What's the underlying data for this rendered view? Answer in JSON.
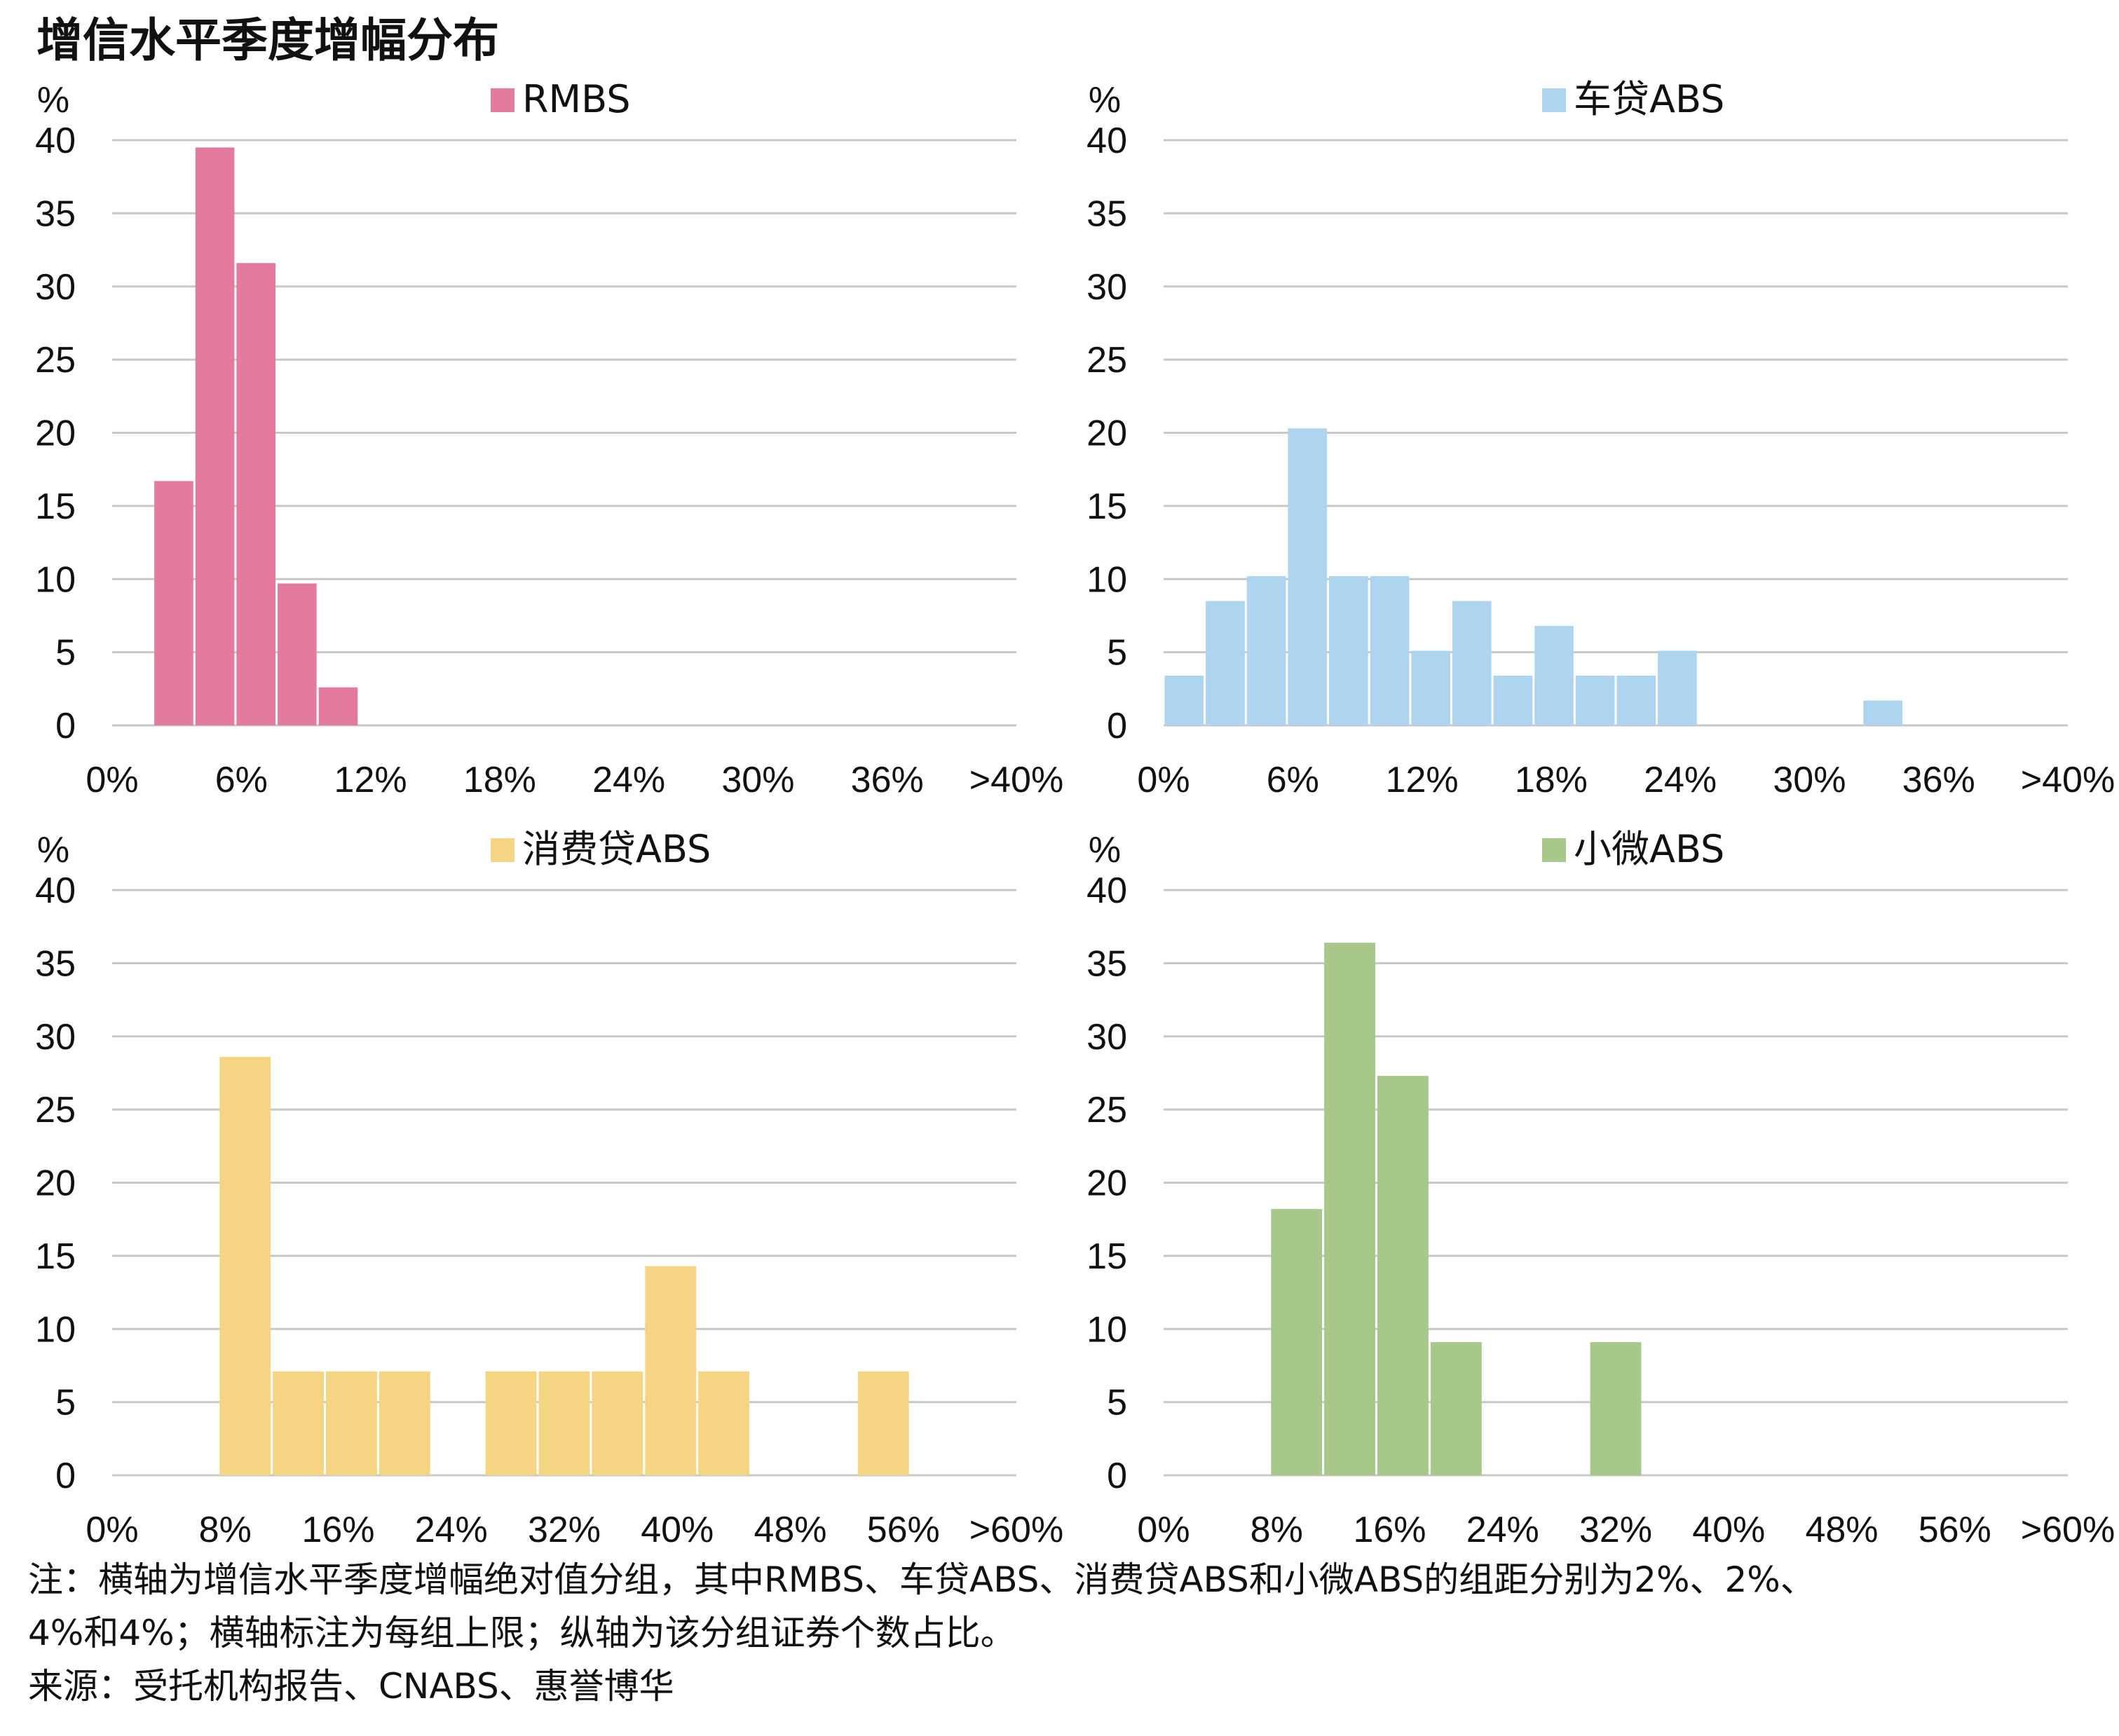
{
  "title": "增信水平季度增幅分布",
  "notes": {
    "line1": "注：横轴为增信水平季度增幅绝对值分组，其中RMBS、车贷ABS、消费贷ABS和小微ABS的组距分别为2%、2%、",
    "line2": "4%和4%；横轴标注为每组上限；纵轴为该分组证券个数占比。",
    "source": "来源：受托机构报告、CNABS、惠誉博华"
  },
  "chart_data": [
    {
      "type": "bar",
      "legend": "RMBS",
      "color": "#E37B9D",
      "unit": "%",
      "ylim": [
        0,
        40
      ],
      "yticks": [
        0,
        5,
        10,
        15,
        20,
        25,
        30,
        35,
        40
      ],
      "xtick_labels": [
        "0%",
        "6%",
        "12%",
        "18%",
        "24%",
        "30%",
        "36%",
        ">40%"
      ],
      "values": [
        0,
        16.7,
        39.5,
        31.6,
        9.7,
        2.6,
        0,
        0,
        0,
        0,
        0,
        0,
        0,
        0,
        0,
        0,
        0,
        0,
        0,
        0,
        0,
        0
      ],
      "grid": true,
      "legend_position": "top"
    },
    {
      "type": "bar",
      "legend": "车贷ABS",
      "color": "#AED4F0",
      "unit": "%",
      "ylim": [
        0,
        40
      ],
      "yticks": [
        0,
        5,
        10,
        15,
        20,
        25,
        30,
        35,
        40
      ],
      "xtick_labels": [
        "0%",
        "6%",
        "12%",
        "18%",
        "24%",
        "30%",
        "36%",
        ">40%"
      ],
      "values": [
        3.4,
        8.5,
        10.2,
        20.3,
        10.2,
        10.2,
        5.1,
        8.5,
        3.4,
        6.8,
        3.4,
        3.4,
        5.1,
        0,
        0,
        0,
        0,
        1.7,
        0,
        0,
        0,
        0
      ],
      "grid": true,
      "legend_position": "top"
    },
    {
      "type": "bar",
      "legend": "消费贷ABS",
      "color": "#F5D483",
      "unit": "%",
      "ylim": [
        0,
        40
      ],
      "yticks": [
        0,
        5,
        10,
        15,
        20,
        25,
        30,
        35,
        40
      ],
      "xtick_labels": [
        "0%",
        "8%",
        "16%",
        "24%",
        "32%",
        "40%",
        "48%",
        "56%",
        ">60%"
      ],
      "values": [
        0,
        0,
        28.6,
        7.1,
        7.1,
        7.1,
        0,
        7.1,
        7.1,
        7.1,
        14.3,
        7.1,
        0,
        0,
        7.1,
        0,
        0
      ],
      "grid": true,
      "legend_position": "top"
    },
    {
      "type": "bar",
      "legend": "小微ABS",
      "color": "#A8C78A",
      "unit": "%",
      "ylim": [
        0,
        40
      ],
      "yticks": [
        0,
        5,
        10,
        15,
        20,
        25,
        30,
        35,
        40
      ],
      "xtick_labels": [
        "0%",
        "8%",
        "16%",
        "24%",
        "32%",
        "40%",
        "48%",
        "56%",
        ">60%"
      ],
      "values": [
        0,
        0,
        18.2,
        36.4,
        27.3,
        9.1,
        0,
        0,
        9.1,
        0,
        0,
        0,
        0,
        0,
        0,
        0,
        0
      ],
      "grid": true,
      "legend_position": "top"
    }
  ]
}
